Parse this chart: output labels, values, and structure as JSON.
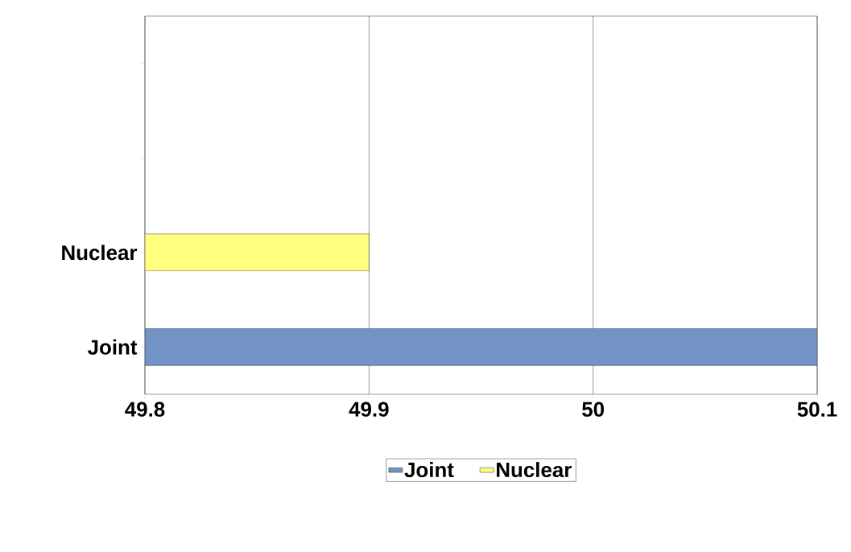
{
  "chart_data": {
    "type": "bar",
    "orientation": "horizontal",
    "categories": [
      null,
      null,
      "Nuclear",
      "Joint"
    ],
    "series": [
      {
        "name": "Joint",
        "color": "#7393c4",
        "values": [
          null,
          null,
          null,
          50.1
        ]
      },
      {
        "name": "Nuclear",
        "color": "#ffff80",
        "values": [
          null,
          null,
          49.9,
          null
        ]
      }
    ],
    "xlim": [
      49.8,
      50.1
    ],
    "xticks": [
      49.8,
      49.9,
      50,
      50.1
    ],
    "grid": "x",
    "legend": "bottom"
  }
}
